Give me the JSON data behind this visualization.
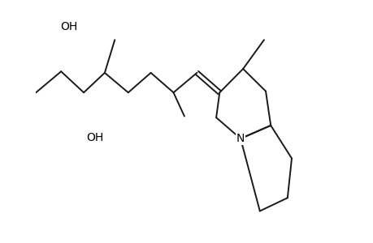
{
  "background_color": "#ffffff",
  "line_color": "#1a1a1a",
  "line_width": 1.4,
  "font_size": 10,
  "figsize": [
    4.6,
    3.0
  ],
  "dpi": 100,
  "xlim": [
    0,
    10
  ],
  "ylim": [
    -4,
    4
  ]
}
